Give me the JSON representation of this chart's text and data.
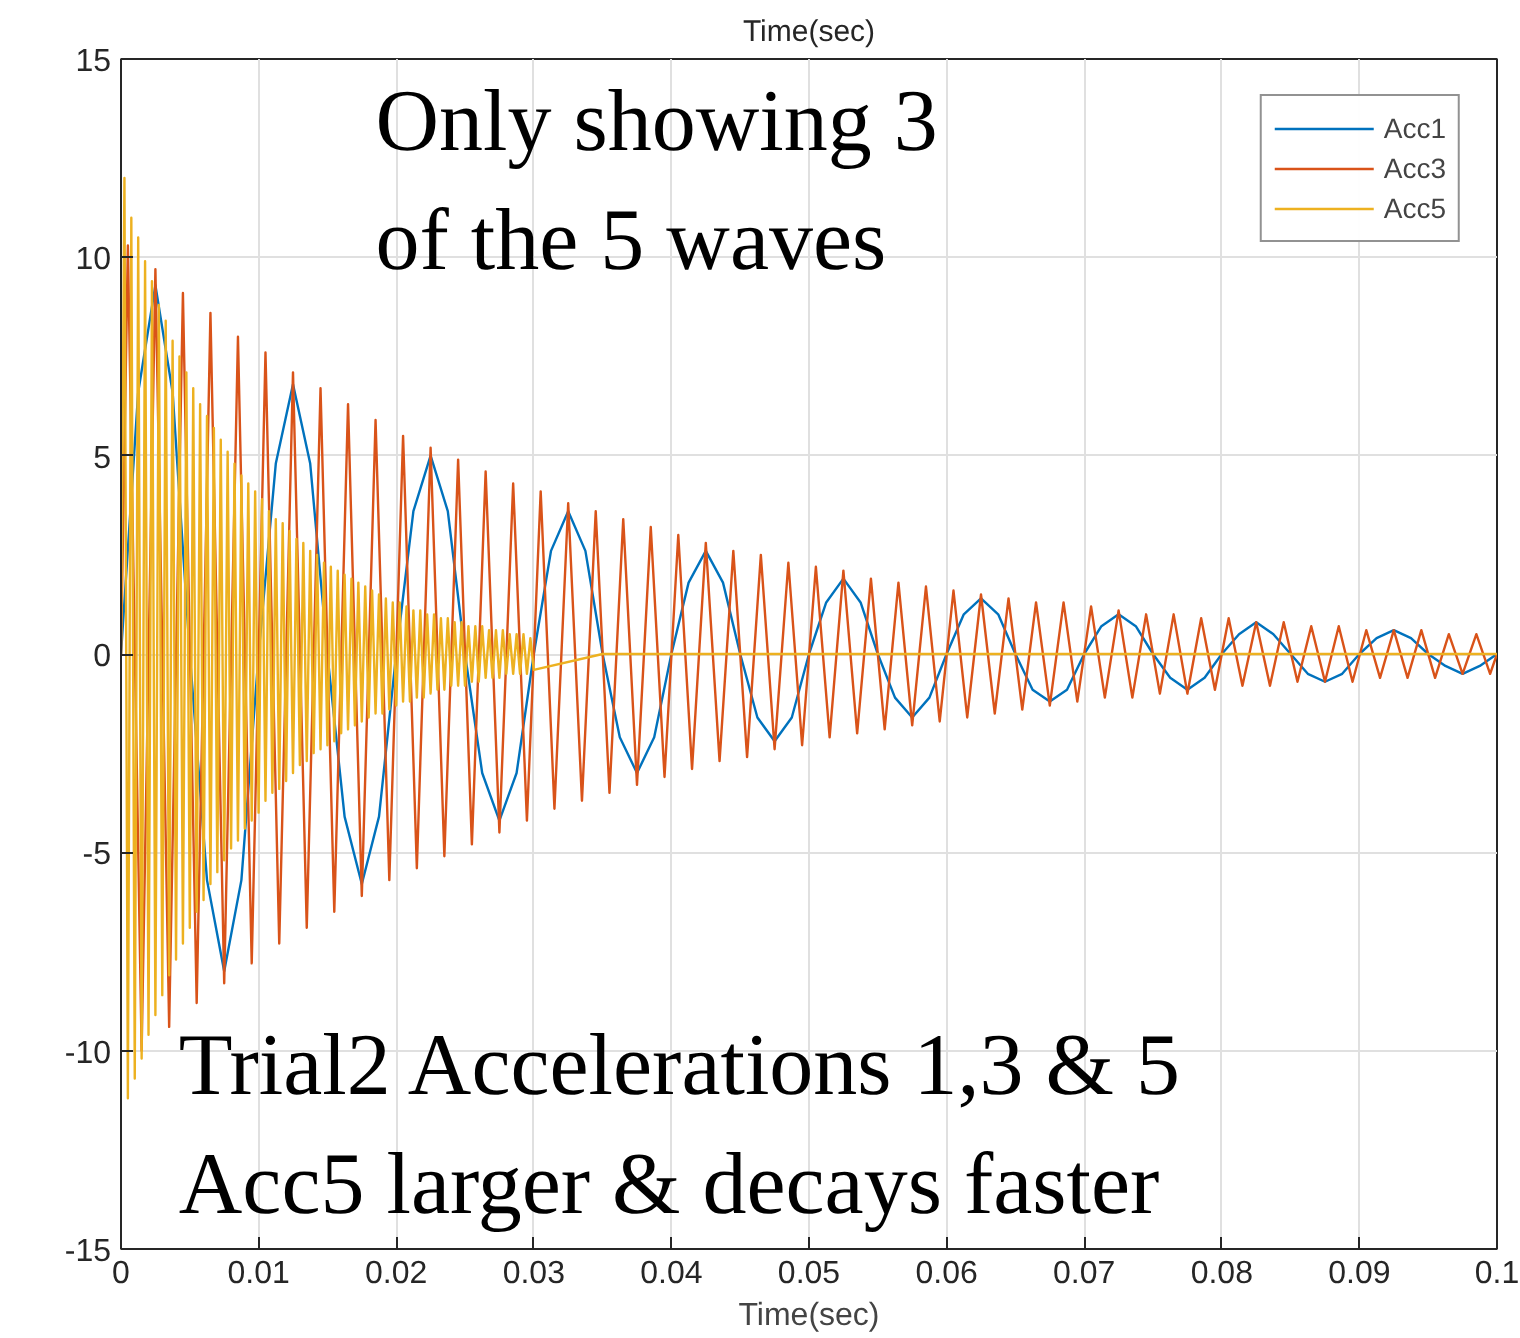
{
  "chart_data": {
    "type": "line",
    "title": "Time(sec)",
    "xlabel": "Time(sec)",
    "xlim": [
      0,
      0.1
    ],
    "ylim": [
      -15,
      15
    ],
    "xticks": [
      0,
      0.01,
      0.02,
      0.03,
      0.04,
      0.05,
      0.06,
      0.07,
      0.08,
      0.09,
      0.1
    ],
    "yticks": [
      -15,
      -10,
      -5,
      0,
      5,
      10,
      15
    ],
    "grid": true,
    "legend": "top right",
    "line_style": "solid",
    "annotations": [
      "Only showing 3\nof the 5 waves",
      "Trial2 Accelerations 1,3 & 5\nAcc5 larger & decays faster"
    ],
    "series": [
      {
        "name": "Acc1",
        "color": "#0072bd",
        "x": [
          0,
          0.00125,
          0.0025,
          0.00375,
          0.005,
          0.00625,
          0.0075,
          0.00875,
          0.01,
          0.01125,
          0.0125,
          0.01375,
          0.015,
          0.01625,
          0.0175,
          0.01875,
          0.02,
          0.02125,
          0.0225,
          0.02375,
          0.025,
          0.02625,
          0.0275,
          0.02875,
          0.03,
          0.03125,
          0.0325,
          0.03375,
          0.035,
          0.03625,
          0.0375,
          0.03875,
          0.04,
          0.04125,
          0.0425,
          0.04375,
          0.045,
          0.04625,
          0.0475,
          0.04875,
          0.05,
          0.05125,
          0.0525,
          0.05375,
          0.055,
          0.05625,
          0.0575,
          0.05875,
          0.06,
          0.06125,
          0.0625,
          0.06375,
          0.065,
          0.06625,
          0.0675,
          0.06875,
          0.07,
          0.07125,
          0.0725,
          0.07375,
          0.075,
          0.07625,
          0.0775,
          0.07875,
          0.08,
          0.08125,
          0.0825,
          0.08375,
          0.085,
          0.08625,
          0.0875,
          0.08875,
          0.09,
          0.09125,
          0.0925,
          0.09375,
          0.095,
          0.09625,
          0.0975,
          0.09875,
          0.1
        ],
        "values": [
          0,
          6.6,
          9.3,
          6.6,
          0,
          -5.7,
          -8.0,
          -5.7,
          0,
          4.8,
          6.8,
          4.8,
          0,
          -4.1,
          -5.8,
          -4.1,
          0,
          3.6,
          5.0,
          3.6,
          0,
          -3.0,
          -4.2,
          -3.0,
          0,
          2.6,
          3.6,
          2.6,
          0,
          -2.1,
          -3.0,
          -2.1,
          0,
          1.8,
          2.6,
          1.8,
          0,
          -1.6,
          -2.2,
          -1.6,
          0,
          1.3,
          1.9,
          1.3,
          0,
          -1.1,
          -1.6,
          -1.1,
          0,
          1.0,
          1.4,
          1.0,
          0,
          -0.9,
          -1.2,
          -0.9,
          0,
          0.7,
          1.0,
          0.7,
          0,
          -0.6,
          -0.9,
          -0.6,
          0,
          0.5,
          0.8,
          0.5,
          0,
          -0.5,
          -0.7,
          -0.5,
          0,
          0.4,
          0.6,
          0.4,
          0,
          -0.3,
          -0.5,
          -0.3,
          0
        ]
      },
      {
        "name": "Acc3",
        "color": "#d95319",
        "x": [
          0,
          0.0005,
          0.0015,
          0.0025,
          0.0035,
          0.0045,
          0.0055,
          0.0065,
          0.0075,
          0.0085,
          0.0095,
          0.0105,
          0.0115,
          0.0125,
          0.0135,
          0.0145,
          0.0155,
          0.0165,
          0.0175,
          0.0185,
          0.0195,
          0.0205,
          0.0215,
          0.0225,
          0.0235,
          0.0245,
          0.0255,
          0.0265,
          0.0275,
          0.0285,
          0.0295,
          0.0305,
          0.0315,
          0.0325,
          0.0335,
          0.0345,
          0.0355,
          0.0365,
          0.0375,
          0.0385,
          0.0395,
          0.0405,
          0.0415,
          0.0425,
          0.0435,
          0.0445,
          0.0455,
          0.0465,
          0.0475,
          0.0485,
          0.0495,
          0.0505,
          0.0515,
          0.0525,
          0.0535,
          0.0545,
          0.0555,
          0.0565,
          0.0575,
          0.0585,
          0.0595,
          0.0605,
          0.0615,
          0.0625,
          0.0635,
          0.0645,
          0.0655,
          0.0665,
          0.0675,
          0.0685,
          0.0695,
          0.0705,
          0.0715,
          0.0725,
          0.0735,
          0.0745,
          0.0755,
          0.0765,
          0.0775,
          0.0785,
          0.0795,
          0.0805,
          0.0815,
          0.0825,
          0.0835,
          0.0845,
          0.0855,
          0.0865,
          0.0875,
          0.0885,
          0.0895,
          0.0905,
          0.0915,
          0.0925,
          0.0935,
          0.0945,
          0.0955,
          0.0965,
          0.0975,
          0.0985,
          0.0995,
          0.1
        ],
        "values": [
          0,
          10.3,
          -10.0,
          9.7,
          -9.4,
          9.1,
          -8.8,
          8.6,
          -8.3,
          8.0,
          -7.8,
          7.6,
          -7.3,
          7.1,
          -6.9,
          6.7,
          -6.5,
          6.3,
          -6.1,
          5.9,
          -5.7,
          5.5,
          -5.4,
          5.2,
          -5.1,
          4.9,
          -4.8,
          4.6,
          -4.5,
          4.3,
          -4.2,
          4.1,
          -3.9,
          3.8,
          -3.7,
          3.6,
          -3.5,
          3.4,
          -3.3,
          3.2,
          -3.1,
          3.0,
          -2.9,
          2.8,
          -2.7,
          2.6,
          -2.6,
          2.5,
          -2.4,
          2.3,
          -2.3,
          2.2,
          -2.1,
          2.1,
          -2.0,
          1.9,
          -1.9,
          1.8,
          -1.8,
          1.7,
          -1.7,
          1.6,
          -1.6,
          1.5,
          -1.5,
          1.4,
          -1.4,
          1.3,
          -1.3,
          1.3,
          -1.2,
          1.2,
          -1.1,
          1.1,
          -1.1,
          1.0,
          -1.0,
          1.0,
          -1.0,
          0.9,
          -0.9,
          0.9,
          -0.8,
          0.8,
          -0.8,
          0.8,
          -0.7,
          0.7,
          -0.7,
          0.7,
          -0.7,
          0.6,
          -0.6,
          0.6,
          -0.6,
          0.6,
          -0.6,
          0.5,
          -0.5,
          0.5,
          -0.5,
          0
        ]
      },
      {
        "name": "Acc5",
        "color": "#edb120",
        "x": [
          0,
          0.00025,
          0.0005,
          0.00075,
          0.001,
          0.00125,
          0.0015,
          0.00175,
          0.002,
          0.00225,
          0.0025,
          0.00275,
          0.003,
          0.00325,
          0.0035,
          0.00375,
          0.004,
          0.00425,
          0.0045,
          0.00475,
          0.005,
          0.00525,
          0.0055,
          0.00575,
          0.006,
          0.00625,
          0.0065,
          0.00675,
          0.007,
          0.00725,
          0.0075,
          0.00775,
          0.008,
          0.00825,
          0.0085,
          0.00875,
          0.009,
          0.00925,
          0.0095,
          0.00975,
          0.01,
          0.01025,
          0.0105,
          0.01075,
          0.011,
          0.01125,
          0.0115,
          0.01175,
          0.012,
          0.01225,
          0.0125,
          0.01275,
          0.013,
          0.01325,
          0.0135,
          0.01375,
          0.014,
          0.01425,
          0.0145,
          0.01475,
          0.015,
          0.01525,
          0.0155,
          0.01575,
          0.016,
          0.01625,
          0.0165,
          0.01675,
          0.017,
          0.01725,
          0.0175,
          0.01775,
          0.018,
          0.01825,
          0.0185,
          0.01875,
          0.019,
          0.01925,
          0.0195,
          0.01975,
          0.02,
          0.02025,
          0.0205,
          0.02075,
          0.021,
          0.02125,
          0.0215,
          0.02175,
          0.022,
          0.02225,
          0.0225,
          0.02275,
          0.023,
          0.02325,
          0.0235,
          0.02375,
          0.024,
          0.02425,
          0.0245,
          0.02475,
          0.025,
          0.02525,
          0.0255,
          0.02575,
          0.026,
          0.02625,
          0.0265,
          0.02675,
          0.027,
          0.02725,
          0.0275,
          0.02775,
          0.028,
          0.02825,
          0.0285,
          0.02875,
          0.029,
          0.02925,
          0.0295,
          0.02975,
          0.03,
          0.035,
          0.1
        ],
        "values": [
          0,
          12.0,
          -11.2,
          11.0,
          -10.7,
          10.5,
          -10.2,
          9.9,
          -9.6,
          9.4,
          -9.1,
          8.8,
          -8.6,
          8.4,
          -8.1,
          7.9,
          -7.7,
          7.5,
          -7.3,
          7.1,
          -6.9,
          6.7,
          -6.5,
          6.3,
          -6.2,
          6.0,
          -5.8,
          5.7,
          -5.5,
          5.4,
          -5.2,
          5.1,
          -4.9,
          4.8,
          -4.7,
          4.5,
          -4.4,
          4.3,
          -4.2,
          4.1,
          -4.0,
          3.9,
          -3.7,
          3.6,
          -3.5,
          3.4,
          -3.4,
          3.3,
          -3.2,
          3.1,
          -3.0,
          2.9,
          -2.8,
          2.8,
          -2.7,
          2.6,
          -2.5,
          2.5,
          -2.4,
          2.3,
          -2.3,
          2.2,
          -2.2,
          2.1,
          -2.0,
          2.0,
          -1.9,
          1.9,
          -1.8,
          1.8,
          -1.7,
          1.7,
          -1.6,
          1.6,
          -1.5,
          1.5,
          -1.5,
          1.4,
          -1.4,
          1.3,
          -1.3,
          1.3,
          -1.2,
          1.2,
          -1.2,
          1.1,
          -1.1,
          1.1,
          -1.1,
          1.0,
          -1.0,
          1.0,
          -0.9,
          0.9,
          -0.9,
          0.9,
          -0.8,
          0.8,
          -0.8,
          0.8,
          -0.8,
          0.7,
          -0.7,
          0.7,
          -0.7,
          0.7,
          -0.6,
          0.6,
          -0.6,
          0.6,
          -0.6,
          0.6,
          -0.5,
          0.5,
          -0.5,
          0.5,
          -0.5,
          0.5,
          -0.5,
          0.4,
          -0.4,
          0,
          0
        ]
      }
    ]
  }
}
